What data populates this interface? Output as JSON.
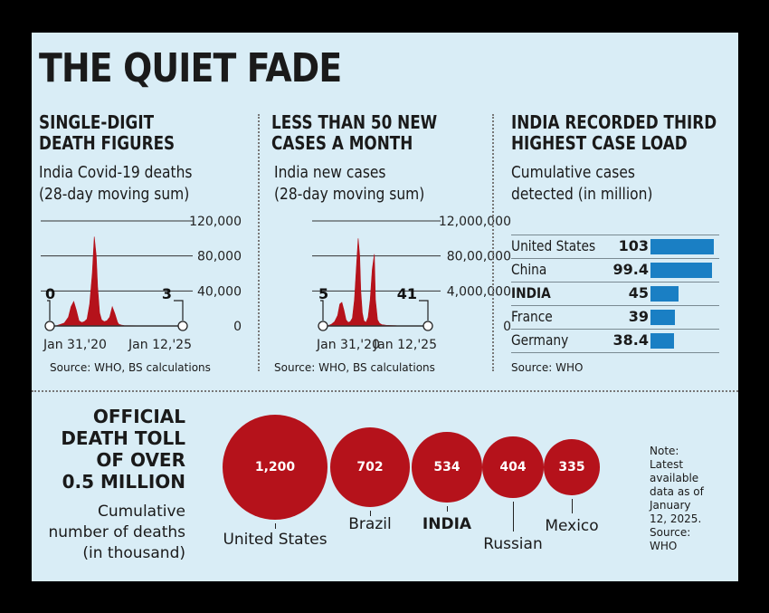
{
  "title": "THE QUIET FADE",
  "colors": {
    "background": "#d9edf6",
    "red": "#b5121b",
    "blue": "#1a7fc4"
  },
  "panels": {
    "deaths": {
      "heading1": "SINGLE-DIGIT",
      "heading2": "DEATH FIGURES",
      "sub1": "India Covid-19 deaths",
      "sub2": "(28-day moving sum)",
      "source": "Source: WHO, BS calculations"
    },
    "cases": {
      "heading1": "LESS THAN 50 NEW",
      "heading2": "CASES A MONTH",
      "sub1": "India new cases",
      "sub2": "(28-day moving sum)",
      "source": "Source: WHO, BS calculations"
    },
    "cumulative": {
      "heading1": "INDIA RECORDED THIRD",
      "heading2": "HIGHEST CASE LOAD",
      "sub1": "Cumulative cases",
      "sub2": "detected (in million)",
      "source": "Source: WHO"
    }
  },
  "bottom": {
    "headline": [
      "OFFICIAL",
      "DEATH TOLL",
      "OF OVER",
      "0.5 MILLION"
    ],
    "subtitle": [
      "Cumulative",
      "number of deaths",
      "(in thousand)"
    ],
    "note": [
      "Note:",
      "Latest",
      "available",
      "data as of",
      "January",
      "12, 2025.",
      "Source:",
      "WHO"
    ]
  },
  "chart_data": [
    {
      "type": "area",
      "title": "India Covid-19 deaths (28-day moving sum)",
      "y_tick_labels": [
        "120,000",
        "80,000",
        "40,000",
        "0"
      ],
      "x_tick_labels": [
        "Jan 31,'20",
        "Jan 12,'25"
      ],
      "ylim": [
        0,
        120000
      ],
      "x": [
        0,
        0.05,
        0.08,
        0.11,
        0.14,
        0.16,
        0.18,
        0.2,
        0.22,
        0.24,
        0.26,
        0.28,
        0.3,
        0.32,
        0.335,
        0.35,
        0.36,
        0.375,
        0.39,
        0.41,
        0.43,
        0.45,
        0.47,
        0.49,
        0.51,
        0.52,
        0.54,
        0.56,
        0.6,
        0.7,
        0.8,
        0.9,
        1.0
      ],
      "values": [
        0,
        300,
        1800,
        3500,
        10000,
        22000,
        28000,
        18000,
        6000,
        4000,
        5000,
        8000,
        25000,
        60000,
        102000,
        80000,
        45000,
        15000,
        7000,
        5000,
        6000,
        10000,
        22000,
        14000,
        4000,
        2000,
        1000,
        500,
        300,
        100,
        50,
        10,
        3
      ],
      "annotations": [
        {
          "x": "Jan 31,'20",
          "label": "0"
        },
        {
          "x": "Jan 12,'25",
          "label": "3"
        }
      ]
    },
    {
      "type": "area",
      "title": "India new cases (28-day moving sum)",
      "y_tick_labels": [
        "12,000,000",
        "80,00,000",
        "4,000,000",
        "0"
      ],
      "x_tick_labels": [
        "Jan 31,'20",
        "Jan 12,'25"
      ],
      "ylim": [
        0,
        12000000
      ],
      "x": [
        0,
        0.05,
        0.08,
        0.11,
        0.14,
        0.16,
        0.18,
        0.2,
        0.22,
        0.24,
        0.26,
        0.28,
        0.3,
        0.32,
        0.335,
        0.35,
        0.36,
        0.375,
        0.39,
        0.41,
        0.43,
        0.45,
        0.47,
        0.49,
        0.5,
        0.52,
        0.54,
        0.56,
        0.6,
        0.7,
        0.8,
        0.9,
        1.0
      ],
      "values": [
        5,
        50000,
        200000,
        500000,
        1200000,
        2500000,
        2700000,
        1800000,
        700000,
        400000,
        500000,
        900000,
        3000000,
        7000000,
        10000000,
        8000000,
        4000000,
        1500000,
        600000,
        400000,
        1000000,
        3000000,
        6500000,
        8200000,
        3000000,
        700000,
        300000,
        150000,
        80000,
        30000,
        10000,
        500,
        41
      ],
      "annotations": [
        {
          "x": "Jan 31,'20",
          "label": "5"
        },
        {
          "x": "Jan 12,'25",
          "label": "41"
        }
      ]
    },
    {
      "type": "bar",
      "title": "Cumulative cases detected (in million)",
      "categories": [
        "United States",
        "China",
        "INDIA",
        "France",
        "Germany"
      ],
      "values": [
        103,
        99.4,
        45,
        39,
        38.4
      ],
      "value_labels": [
        "103",
        "99.4",
        "45",
        "39",
        "38.4"
      ],
      "orientation": "horizontal",
      "highlight": "INDIA"
    },
    {
      "type": "bubble",
      "title": "Cumulative number of deaths (in thousand)",
      "categories": [
        "United States",
        "Brazil",
        "INDIA",
        "Russian",
        "Mexico"
      ],
      "values": [
        1200,
        702,
        534,
        404,
        335
      ],
      "value_labels": [
        "1,200",
        "702",
        "534",
        "404",
        "335"
      ],
      "highlight": "INDIA"
    }
  ]
}
